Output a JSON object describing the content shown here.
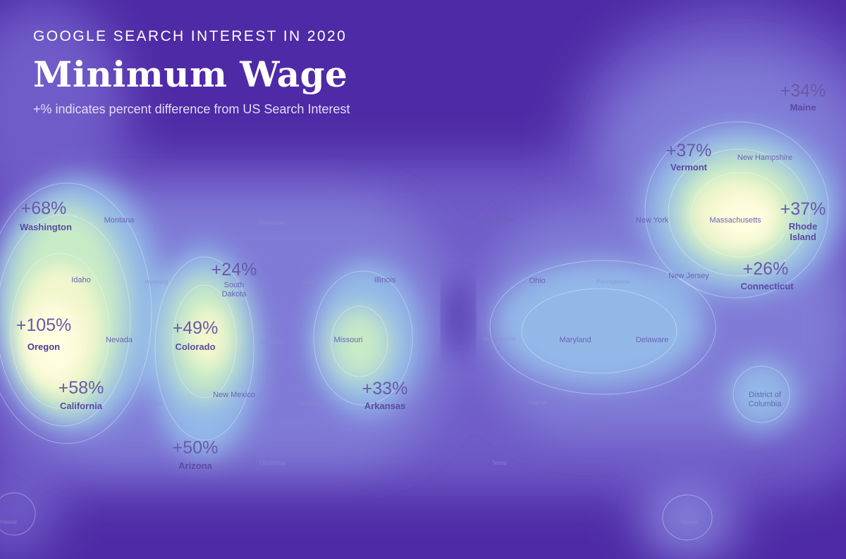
{
  "header": {
    "kicker": "GOOGLE SEARCH INTEREST IN 2020",
    "title": "Minimum Wage",
    "subtitle": "+% indicates percent difference from US Search Interest"
  },
  "colors": {
    "background": "#4e2aa6",
    "low": "#5a3fb4",
    "mid": "#8fb2e6",
    "high": "#fffbd4",
    "label": "#5c4aa2"
  },
  "chart_data": {
    "type": "heatmap",
    "value_meaning": "percent difference from US search interest",
    "labeled_values": [
      {
        "state": "Washington",
        "value": "+68%"
      },
      {
        "state": "Oregon",
        "value": "+105%"
      },
      {
        "state": "California",
        "value": "+58%"
      },
      {
        "state": "South Dakota",
        "value": "+24%"
      },
      {
        "state": "Colorado",
        "value": "+49%"
      },
      {
        "state": "Arizona",
        "value": "+50%"
      },
      {
        "state": "Arkansas",
        "value": "+33%"
      },
      {
        "state": "Vermont",
        "value": "+37%"
      },
      {
        "state": "Maine",
        "value": "+34%"
      },
      {
        "state": "Rhode Island",
        "value": "+37%"
      },
      {
        "state": "Connecticut",
        "value": "+26%"
      }
    ],
    "state_labels": [
      "Washington",
      "Montana",
      "Minnesota",
      "Michigan",
      "New York",
      "Massachusetts",
      "Rhode Island",
      "New Hampshire",
      "Maine",
      "Vermont",
      "Idaho",
      "Wyoming",
      "South Dakota",
      "Iowa",
      "Illinois",
      "Ohio",
      "Pennsylvania",
      "New Jersey",
      "Connecticut",
      "Oregon",
      "Nevada",
      "Colorado",
      "Nebraska",
      "Missouri",
      "West Virginia",
      "Maryland",
      "Delaware",
      "California",
      "Utah",
      "New Mexico",
      "Kansas",
      "Arkansas",
      "Virginia",
      "District of Columbia",
      "Arizona",
      "Oklahoma",
      "Texas",
      "Hawaii",
      "Florida"
    ]
  }
}
